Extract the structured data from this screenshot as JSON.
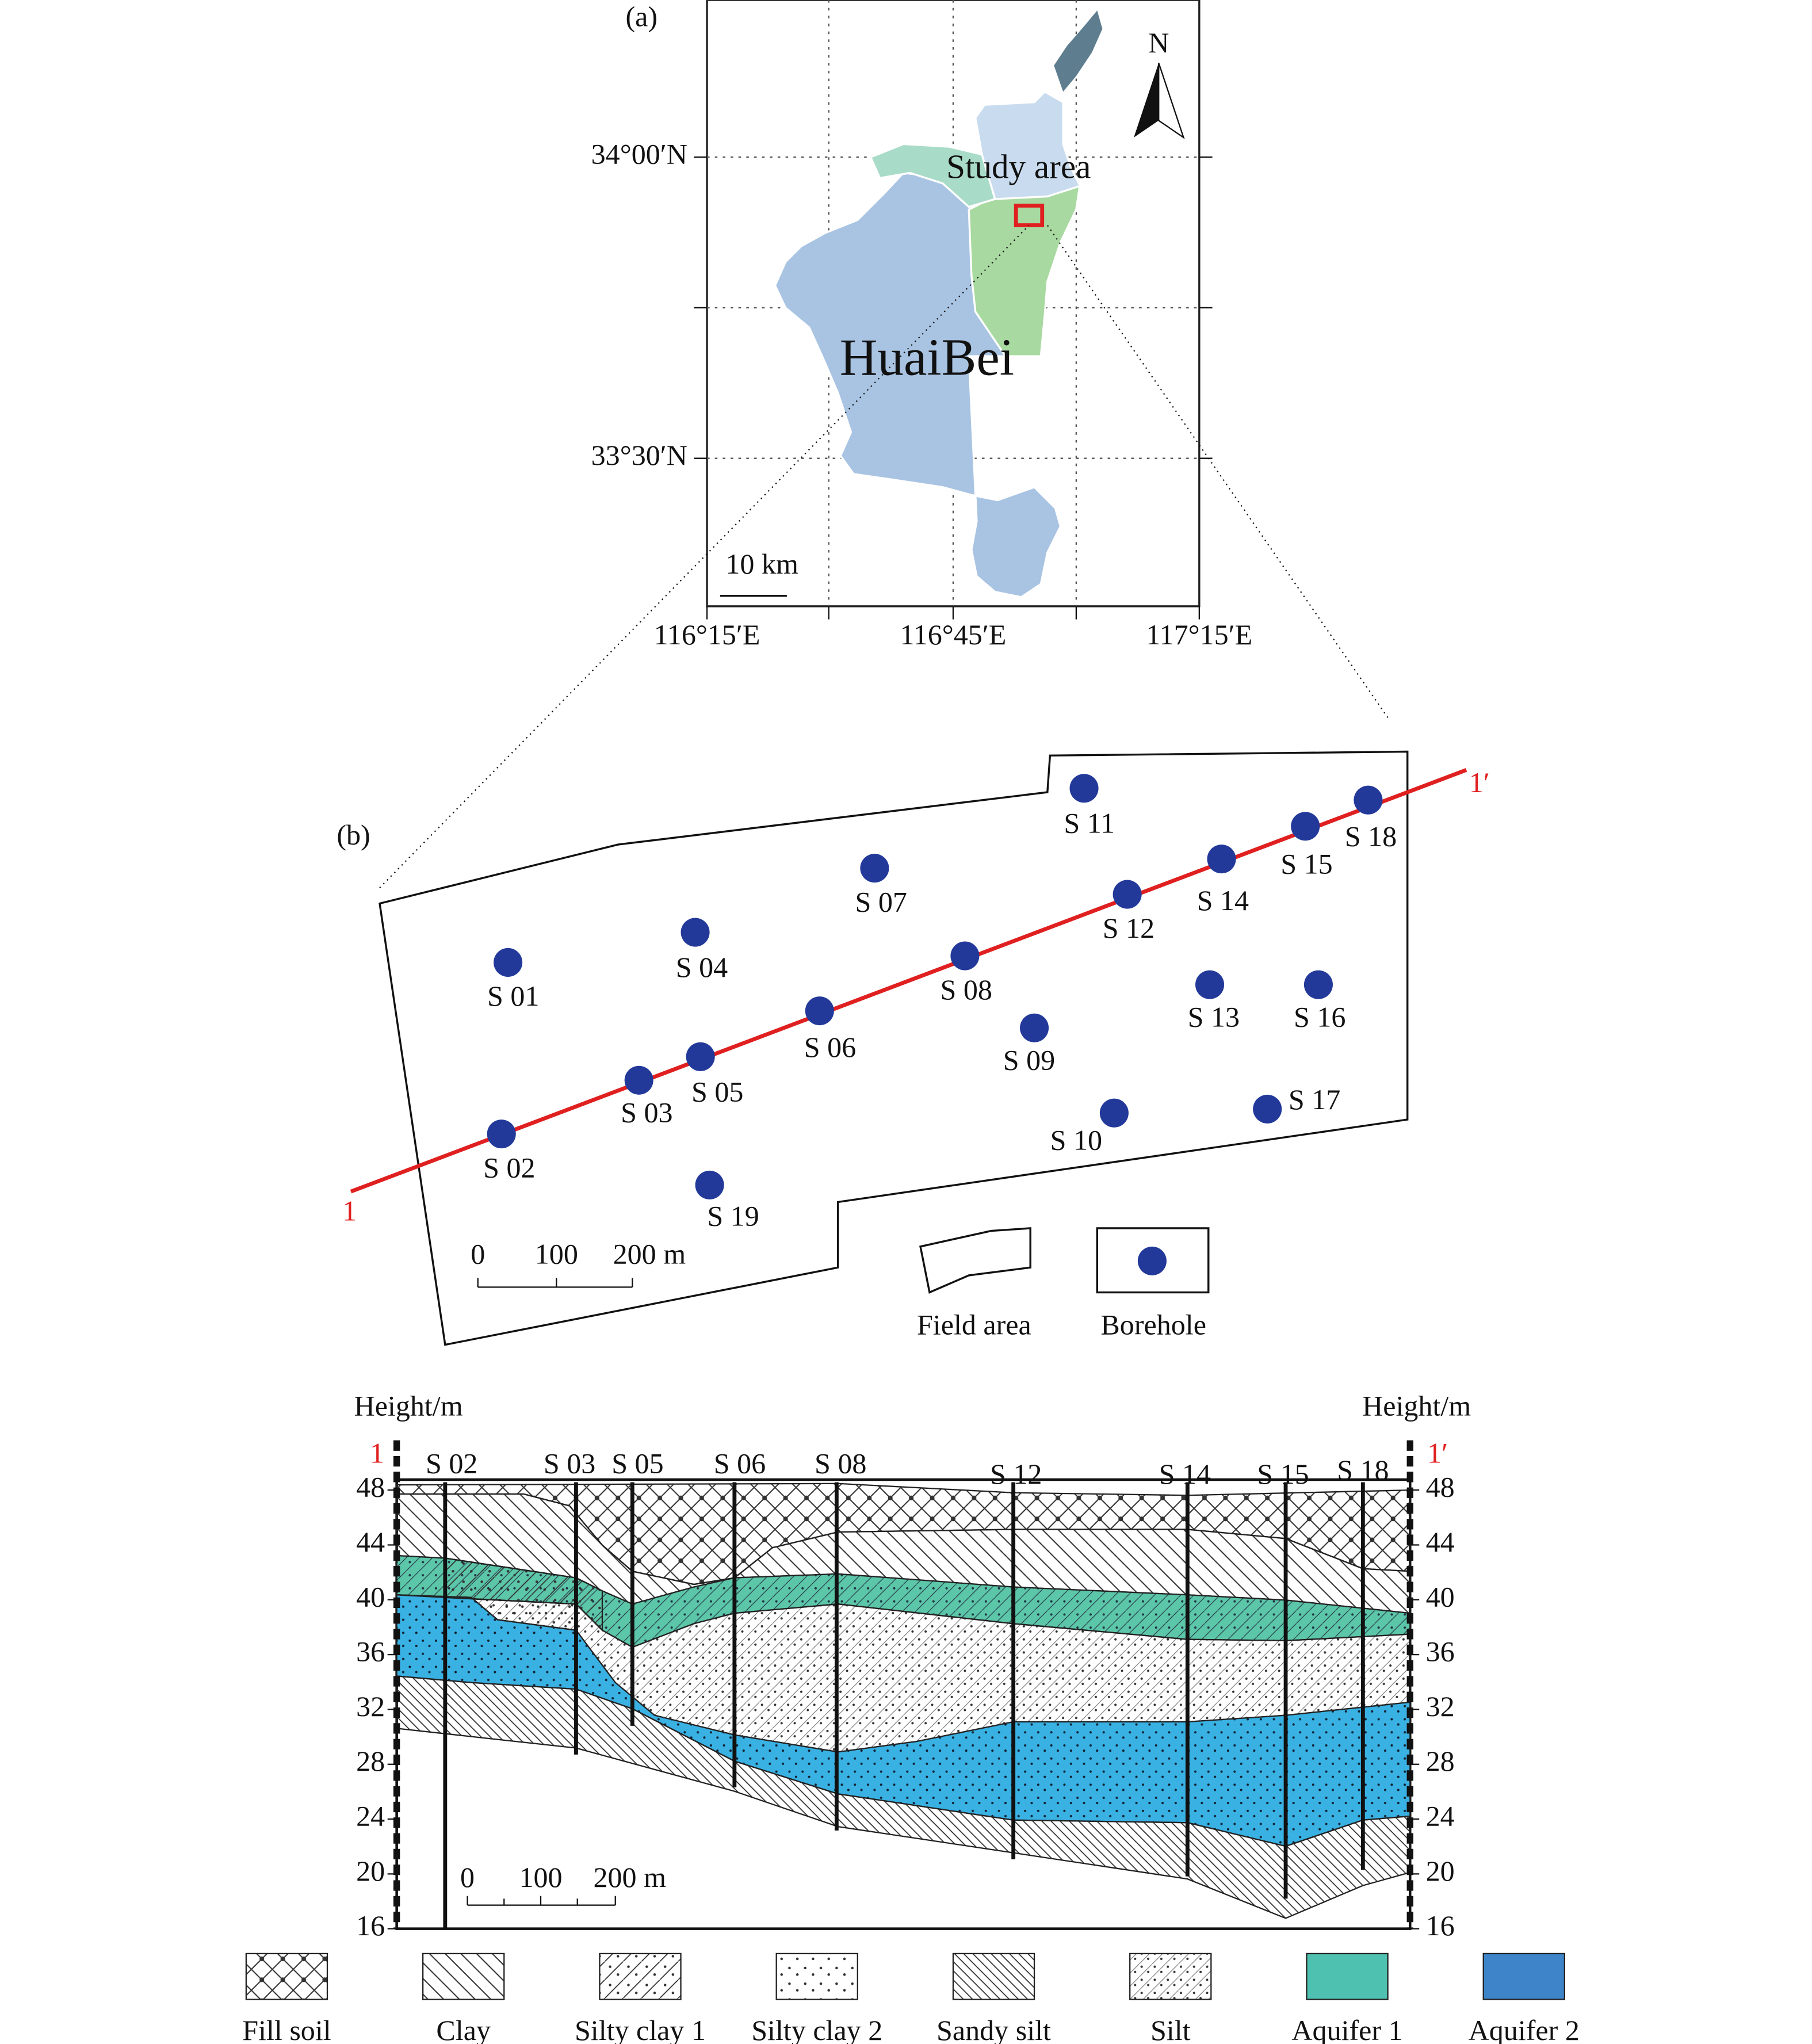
{
  "panel_a": {
    "label": "(a)",
    "latitude_labels": [
      "34°00′N",
      "33°30′N"
    ],
    "longitude_labels": [
      "116°15′E",
      "116°45′E",
      "117°15′E"
    ],
    "north": "N",
    "study_area": "Study area",
    "city": "HuaiBei",
    "scale": "10 km"
  },
  "panel_b": {
    "label": "(b)",
    "line_start": "1",
    "line_end": "1′",
    "boreholes": [
      "S 01",
      "S 02",
      "S 03",
      "S 04",
      "S 05",
      "S 06",
      "S 07",
      "S 08",
      "S 09",
      "S 10",
      "S 11",
      "S 12",
      "S 13",
      "S 14",
      "S 15",
      "S 16",
      "S 17",
      "S 18",
      "S 19"
    ],
    "scale_labels": [
      "0",
      "100",
      "200 m"
    ],
    "legend": [
      "Field area",
      "Borehole"
    ]
  },
  "section": {
    "y_title": "Height/m",
    "line_start": "1",
    "line_end": "1′",
    "boreholes": [
      "S 02",
      "S 03",
      "S 05",
      "S 06",
      "S 08",
      "S 12",
      "S 14",
      "S 15",
      "S 18"
    ],
    "height_ticks": [
      48,
      44,
      40,
      36,
      32,
      28,
      24,
      20,
      16
    ],
    "scale_labels": [
      "0",
      "100",
      "200 m"
    ]
  },
  "legend": [
    "Fill soil",
    "Clay",
    "Silty clay 1",
    "Silty clay 2",
    "Sandy silt",
    "Silt",
    "Aquifer 1",
    "Aquifer 2"
  ]
}
